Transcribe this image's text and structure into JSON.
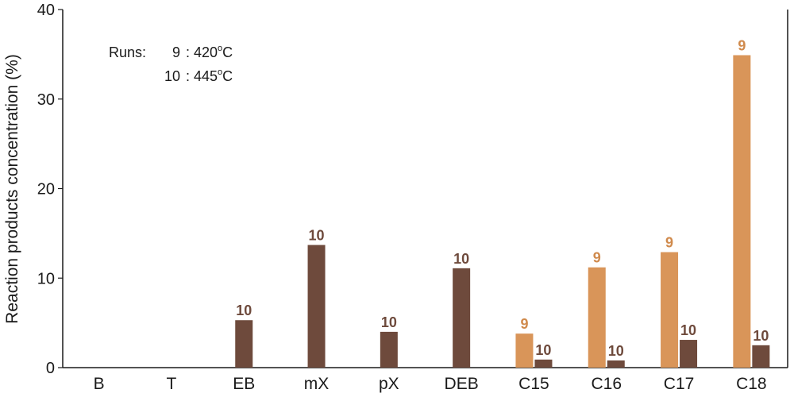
{
  "chart_data": {
    "type": "bar",
    "title": "",
    "xlabel": "",
    "ylabel": "Reaction products concentration (%)",
    "ylim": [
      0,
      40
    ],
    "yticks": [
      0,
      10,
      20,
      30,
      40
    ],
    "grid": false,
    "categories": [
      "B",
      "T",
      "EB",
      "mX",
      "pX",
      "DEB",
      "C15",
      "C16",
      "C17",
      "C18"
    ],
    "series": [
      {
        "name": "9",
        "color": "#d99559",
        "label_color": "#d08a4c",
        "values": [
          null,
          null,
          null,
          null,
          null,
          null,
          3.8,
          11.2,
          12.9,
          34.9
        ]
      },
      {
        "name": "10",
        "color": "#6e4a3c",
        "label_color": "#6e4a3c",
        "values": [
          null,
          null,
          5.3,
          13.7,
          4.0,
          11.1,
          0.9,
          0.8,
          3.1,
          2.5
        ]
      }
    ],
    "legend": {
      "position": "top-left",
      "prefix": "Runs:",
      "entries": [
        {
          "run": "9",
          "separator": ":",
          "temp": "420",
          "degree": "o",
          "unit": "C"
        },
        {
          "run": "10",
          "separator": ":",
          "temp": "445",
          "degree": "o",
          "unit": "C"
        }
      ]
    }
  }
}
